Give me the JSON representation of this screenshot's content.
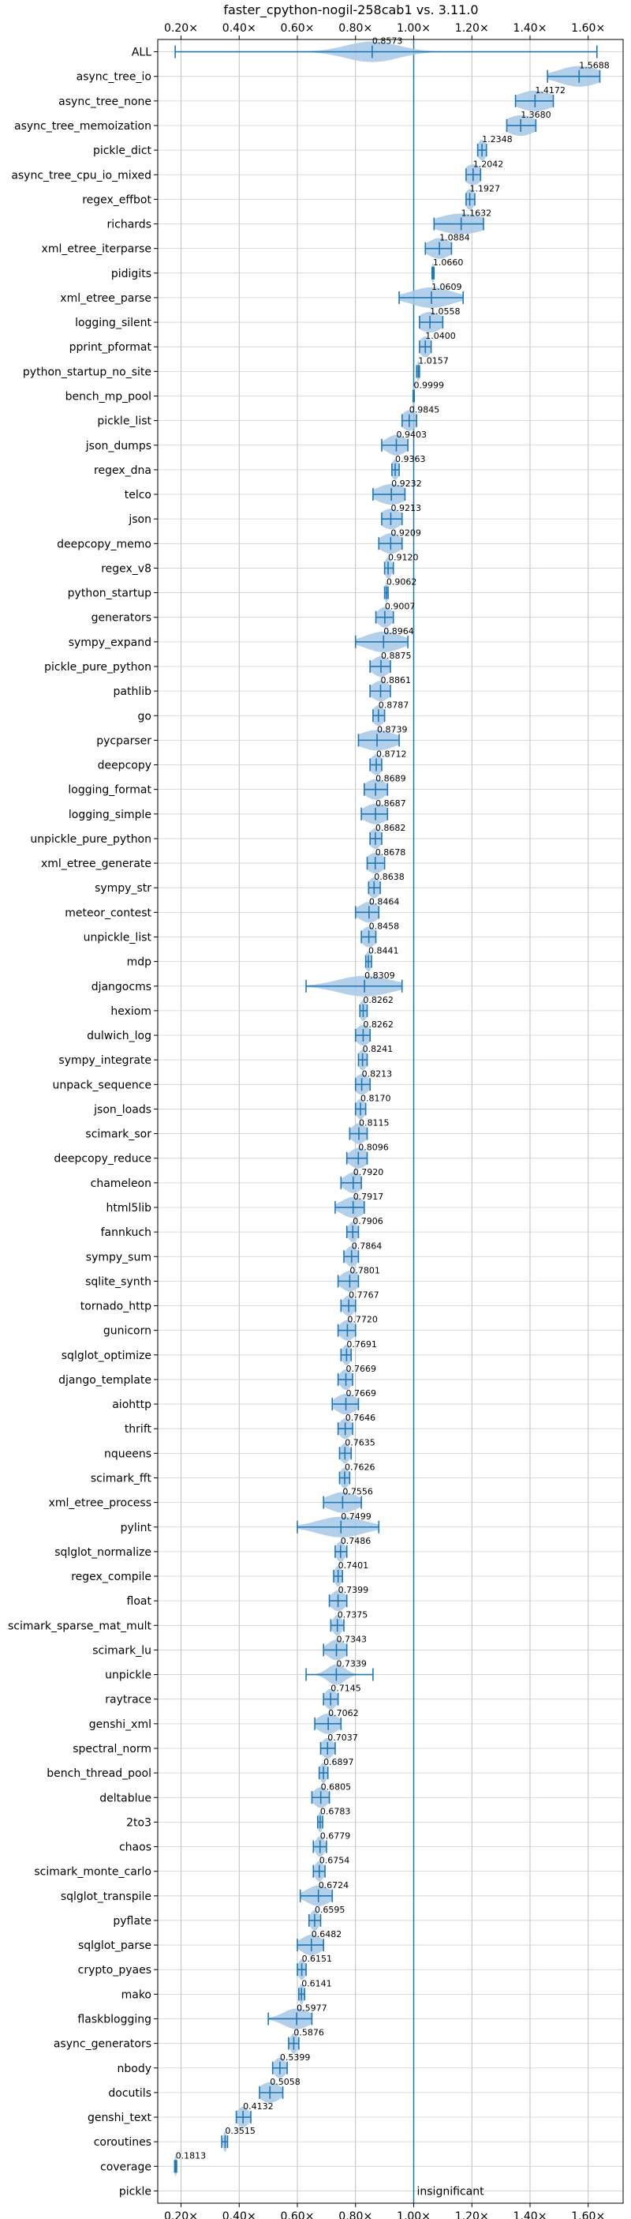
{
  "chart_data": {
    "type": "violin",
    "title": "faster_cpython-nogil-258cab1 vs. 3.11.0",
    "xlim": [
      0.12,
      1.72
    ],
    "xticks": [
      {
        "value": 0.2,
        "label": "0.20×"
      },
      {
        "value": 0.4,
        "label": "0.40×"
      },
      {
        "value": 0.6,
        "label": "0.60×"
      },
      {
        "value": 0.8,
        "label": "0.80×"
      },
      {
        "value": 1.0,
        "label": "1.00×"
      },
      {
        "value": 1.2,
        "label": "1.20×"
      },
      {
        "value": 1.4,
        "label": "1.40×"
      },
      {
        "value": 1.6,
        "label": "1.60×"
      }
    ],
    "reference_line": 1.0,
    "grid": true,
    "colors": {
      "line": "#1f77b4",
      "violin": "#a6c8e6"
    },
    "benchmarks": [
      {
        "name": "ALL",
        "mean": 0.8573,
        "min": 0.18,
        "max": 1.63,
        "spread": 0.09
      },
      {
        "name": "async_tree_io",
        "mean": 1.5688,
        "min": 1.46,
        "max": 1.64,
        "spread": 0.07
      },
      {
        "name": "async_tree_none",
        "mean": 1.4172,
        "min": 1.35,
        "max": 1.48,
        "spread": 0.06
      },
      {
        "name": "async_tree_memoization",
        "mean": 1.368,
        "min": 1.32,
        "max": 1.42,
        "spread": 0.05
      },
      {
        "name": "pickle_dict",
        "mean": 1.2348,
        "min": 1.22,
        "max": 1.25,
        "spread": 0.015
      },
      {
        "name": "async_tree_cpu_io_mixed",
        "mean": 1.2042,
        "min": 1.18,
        "max": 1.23,
        "spread": 0.03
      },
      {
        "name": "regex_effbot",
        "mean": 1.1927,
        "min": 1.18,
        "max": 1.21,
        "spread": 0.015
      },
      {
        "name": "richards",
        "mean": 1.1632,
        "min": 1.07,
        "max": 1.24,
        "spread": 0.08
      },
      {
        "name": "xml_etree_iterparse",
        "mean": 1.0884,
        "min": 1.04,
        "max": 1.13,
        "spread": 0.04
      },
      {
        "name": "pidigits",
        "mean": 1.066,
        "min": 1.063,
        "max": 1.07,
        "spread": 0.004
      },
      {
        "name": "xml_etree_parse",
        "mean": 1.0609,
        "min": 0.95,
        "max": 1.17,
        "spread": 0.07
      },
      {
        "name": "logging_silent",
        "mean": 1.0558,
        "min": 1.02,
        "max": 1.1,
        "spread": 0.04
      },
      {
        "name": "pprint_pformat",
        "mean": 1.04,
        "min": 1.02,
        "max": 1.06,
        "spread": 0.02
      },
      {
        "name": "python_startup_no_site",
        "mean": 1.0157,
        "min": 1.01,
        "max": 1.02,
        "spread": 0.005
      },
      {
        "name": "bench_mp_pool",
        "mean": 0.9999,
        "min": 0.998,
        "max": 1.002,
        "spread": 0.002
      },
      {
        "name": "pickle_list",
        "mean": 0.9845,
        "min": 0.96,
        "max": 1.01,
        "spread": 0.025
      },
      {
        "name": "json_dumps",
        "mean": 0.9403,
        "min": 0.89,
        "max": 0.98,
        "spread": 0.035
      },
      {
        "name": "regex_dna",
        "mean": 0.9363,
        "min": 0.925,
        "max": 0.95,
        "spread": 0.012
      },
      {
        "name": "telco",
        "mean": 0.9232,
        "min": 0.86,
        "max": 0.97,
        "spread": 0.05
      },
      {
        "name": "json",
        "mean": 0.9213,
        "min": 0.89,
        "max": 0.96,
        "spread": 0.035
      },
      {
        "name": "deepcopy_memo",
        "mean": 0.9209,
        "min": 0.88,
        "max": 0.96,
        "spread": 0.035
      },
      {
        "name": "regex_v8",
        "mean": 0.912,
        "min": 0.9,
        "max": 0.93,
        "spread": 0.012
      },
      {
        "name": "python_startup",
        "mean": 0.9062,
        "min": 0.9,
        "max": 0.912,
        "spread": 0.005
      },
      {
        "name": "generators",
        "mean": 0.9007,
        "min": 0.87,
        "max": 0.93,
        "spread": 0.025
      },
      {
        "name": "sympy_expand",
        "mean": 0.8964,
        "min": 0.8,
        "max": 0.98,
        "spread": 0.06
      },
      {
        "name": "pickle_pure_python",
        "mean": 0.8875,
        "min": 0.85,
        "max": 0.92,
        "spread": 0.03
      },
      {
        "name": "pathlib",
        "mean": 0.8861,
        "min": 0.85,
        "max": 0.92,
        "spread": 0.03
      },
      {
        "name": "go",
        "mean": 0.8787,
        "min": 0.86,
        "max": 0.9,
        "spread": 0.02
      },
      {
        "name": "pycparser",
        "mean": 0.8739,
        "min": 0.81,
        "max": 0.95,
        "spread": 0.06
      },
      {
        "name": "deepcopy",
        "mean": 0.8712,
        "min": 0.85,
        "max": 0.89,
        "spread": 0.02
      },
      {
        "name": "logging_format",
        "mean": 0.8689,
        "min": 0.83,
        "max": 0.91,
        "spread": 0.035
      },
      {
        "name": "logging_simple",
        "mean": 0.8687,
        "min": 0.82,
        "max": 0.91,
        "spread": 0.04
      },
      {
        "name": "unpickle_pure_python",
        "mean": 0.8682,
        "min": 0.85,
        "max": 0.89,
        "spread": 0.02
      },
      {
        "name": "xml_etree_generate",
        "mean": 0.8678,
        "min": 0.84,
        "max": 0.9,
        "spread": 0.03
      },
      {
        "name": "sympy_str",
        "mean": 0.8638,
        "min": 0.845,
        "max": 0.885,
        "spread": 0.02
      },
      {
        "name": "meteor_contest",
        "mean": 0.8464,
        "min": 0.8,
        "max": 0.88,
        "spread": 0.035
      },
      {
        "name": "unpickle_list",
        "mean": 0.8458,
        "min": 0.82,
        "max": 0.87,
        "spread": 0.025
      },
      {
        "name": "mdp",
        "mean": 0.8441,
        "min": 0.835,
        "max": 0.855,
        "spread": 0.01
      },
      {
        "name": "djangocms",
        "mean": 0.8309,
        "min": 0.63,
        "max": 0.96,
        "spread": 0.09
      },
      {
        "name": "hexiom",
        "mean": 0.8262,
        "min": 0.815,
        "max": 0.84,
        "spread": 0.012
      },
      {
        "name": "dulwich_log",
        "mean": 0.8262,
        "min": 0.8,
        "max": 0.85,
        "spread": 0.025
      },
      {
        "name": "sympy_integrate",
        "mean": 0.8241,
        "min": 0.81,
        "max": 0.84,
        "spread": 0.015
      },
      {
        "name": "unpack_sequence",
        "mean": 0.8213,
        "min": 0.8,
        "max": 0.85,
        "spread": 0.025
      },
      {
        "name": "json_loads",
        "mean": 0.817,
        "min": 0.8,
        "max": 0.835,
        "spread": 0.015
      },
      {
        "name": "scimark_sor",
        "mean": 0.8115,
        "min": 0.78,
        "max": 0.84,
        "spread": 0.025
      },
      {
        "name": "deepcopy_reduce",
        "mean": 0.8096,
        "min": 0.77,
        "max": 0.84,
        "spread": 0.03
      },
      {
        "name": "chameleon",
        "mean": 0.792,
        "min": 0.75,
        "max": 0.82,
        "spread": 0.03
      },
      {
        "name": "html5lib",
        "mean": 0.7917,
        "min": 0.73,
        "max": 0.83,
        "spread": 0.04
      },
      {
        "name": "fannkuch",
        "mean": 0.7906,
        "min": 0.77,
        "max": 0.81,
        "spread": 0.015
      },
      {
        "name": "sympy_sum",
        "mean": 0.7864,
        "min": 0.76,
        "max": 0.81,
        "spread": 0.02
      },
      {
        "name": "sqlite_synth",
        "mean": 0.7801,
        "min": 0.74,
        "max": 0.81,
        "spread": 0.03
      },
      {
        "name": "tornado_http",
        "mean": 0.7767,
        "min": 0.75,
        "max": 0.8,
        "spread": 0.02
      },
      {
        "name": "gunicorn",
        "mean": 0.772,
        "min": 0.74,
        "max": 0.8,
        "spread": 0.025
      },
      {
        "name": "sqlglot_optimize",
        "mean": 0.7691,
        "min": 0.75,
        "max": 0.785,
        "spread": 0.015
      },
      {
        "name": "django_template",
        "mean": 0.7669,
        "min": 0.74,
        "max": 0.79,
        "spread": 0.02
      },
      {
        "name": "aiohttp",
        "mean": 0.7669,
        "min": 0.72,
        "max": 0.81,
        "spread": 0.035
      },
      {
        "name": "thrift",
        "mean": 0.7646,
        "min": 0.74,
        "max": 0.79,
        "spread": 0.02
      },
      {
        "name": "nqueens",
        "mean": 0.7635,
        "min": 0.745,
        "max": 0.785,
        "spread": 0.015
      },
      {
        "name": "scimark_fft",
        "mean": 0.7626,
        "min": 0.745,
        "max": 0.78,
        "spread": 0.015
      },
      {
        "name": "xml_etree_process",
        "mean": 0.7556,
        "min": 0.69,
        "max": 0.82,
        "spread": 0.05
      },
      {
        "name": "pylint",
        "mean": 0.7499,
        "min": 0.6,
        "max": 0.88,
        "spread": 0.08
      },
      {
        "name": "sqlglot_normalize",
        "mean": 0.7486,
        "min": 0.73,
        "max": 0.77,
        "spread": 0.015
      },
      {
        "name": "regex_compile",
        "mean": 0.7401,
        "min": 0.725,
        "max": 0.755,
        "spread": 0.012
      },
      {
        "name": "float",
        "mean": 0.7399,
        "min": 0.71,
        "max": 0.77,
        "spread": 0.025
      },
      {
        "name": "scimark_sparse_mat_mult",
        "mean": 0.7375,
        "min": 0.715,
        "max": 0.76,
        "spread": 0.015
      },
      {
        "name": "scimark_lu",
        "mean": 0.7343,
        "min": 0.69,
        "max": 0.77,
        "spread": 0.03
      },
      {
        "name": "unpickle",
        "mean": 0.7339,
        "min": 0.63,
        "max": 0.86,
        "spread": 0.03
      },
      {
        "name": "raytrace",
        "mean": 0.7145,
        "min": 0.69,
        "max": 0.74,
        "spread": 0.02
      },
      {
        "name": "genshi_xml",
        "mean": 0.7062,
        "min": 0.66,
        "max": 0.75,
        "spread": 0.035
      },
      {
        "name": "spectral_norm",
        "mean": 0.7037,
        "min": 0.68,
        "max": 0.73,
        "spread": 0.02
      },
      {
        "name": "bench_thread_pool",
        "mean": 0.6897,
        "min": 0.675,
        "max": 0.705,
        "spread": 0.012
      },
      {
        "name": "deltablue",
        "mean": 0.6805,
        "min": 0.65,
        "max": 0.71,
        "spread": 0.025
      },
      {
        "name": "2to3",
        "mean": 0.6783,
        "min": 0.67,
        "max": 0.687,
        "spread": 0.008
      },
      {
        "name": "chaos",
        "mean": 0.6779,
        "min": 0.655,
        "max": 0.7,
        "spread": 0.015
      },
      {
        "name": "scimark_monte_carlo",
        "mean": 0.6754,
        "min": 0.655,
        "max": 0.695,
        "spread": 0.015
      },
      {
        "name": "sqlglot_transpile",
        "mean": 0.6724,
        "min": 0.61,
        "max": 0.72,
        "spread": 0.04
      },
      {
        "name": "pyflate",
        "mean": 0.6595,
        "min": 0.64,
        "max": 0.68,
        "spread": 0.015
      },
      {
        "name": "sqlglot_parse",
        "mean": 0.6482,
        "min": 0.6,
        "max": 0.69,
        "spread": 0.035
      },
      {
        "name": "crypto_pyaes",
        "mean": 0.6151,
        "min": 0.6,
        "max": 0.63,
        "spread": 0.012
      },
      {
        "name": "mako",
        "mean": 0.6141,
        "min": 0.605,
        "max": 0.625,
        "spread": 0.008
      },
      {
        "name": "flaskblogging",
        "mean": 0.5977,
        "min": 0.5,
        "max": 0.65,
        "spread": 0.045
      },
      {
        "name": "async_generators",
        "mean": 0.5876,
        "min": 0.57,
        "max": 0.605,
        "spread": 0.012
      },
      {
        "name": "nbody",
        "mean": 0.5399,
        "min": 0.515,
        "max": 0.565,
        "spread": 0.02
      },
      {
        "name": "docutils",
        "mean": 0.5058,
        "min": 0.47,
        "max": 0.55,
        "spread": 0.035
      },
      {
        "name": "genshi_text",
        "mean": 0.4132,
        "min": 0.39,
        "max": 0.44,
        "spread": 0.02
      },
      {
        "name": "coroutines",
        "mean": 0.3515,
        "min": 0.34,
        "max": 0.36,
        "spread": 0.006
      },
      {
        "name": "coverage",
        "mean": 0.1813,
        "min": 0.178,
        "max": 0.185,
        "spread": 0.004
      },
      {
        "name": "pickle",
        "mean": null,
        "note": "insignificant"
      }
    ]
  }
}
